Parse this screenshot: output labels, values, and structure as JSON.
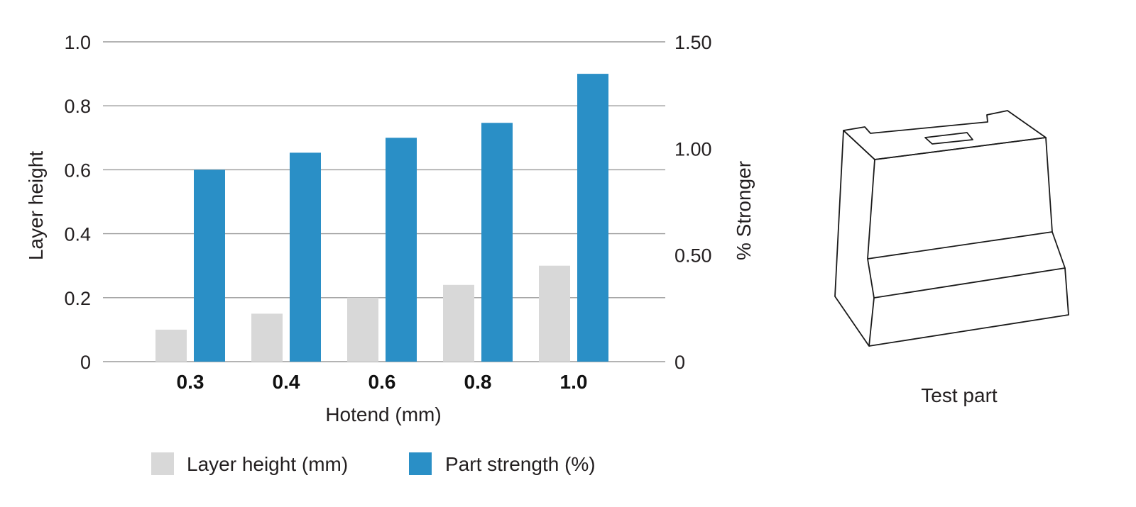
{
  "chart_data": {
    "type": "bar",
    "categories": [
      "0.3",
      "0.4",
      "0.6",
      "0.8",
      "1.0"
    ],
    "xlabel": "Hotend (mm)",
    "ylabel": "Layer height",
    "y2label": "% Stronger",
    "ylim": [
      0,
      1.0
    ],
    "y2lim": [
      0,
      1.5
    ],
    "yticks": [
      "0",
      "0.2",
      "0.4",
      "0.6",
      "0.8",
      "1.0"
    ],
    "y2ticks": [
      "0",
      "0.50",
      "1.00",
      "1.50"
    ],
    "grid": true,
    "legend_position": "bottom",
    "series": [
      {
        "name": "Layer height (mm)",
        "axis": "left",
        "color": "#d8d8d8",
        "values": [
          0.1,
          0.15,
          0.2,
          0.24,
          0.3
        ]
      },
      {
        "name": "Part strength (%)",
        "axis": "right",
        "color": "#2a8fc6",
        "values": [
          0.9,
          0.98,
          1.05,
          1.12,
          1.35
        ]
      }
    ]
  },
  "figure": {
    "caption": "Test part",
    "icon": "test-part-drawing-icon"
  }
}
